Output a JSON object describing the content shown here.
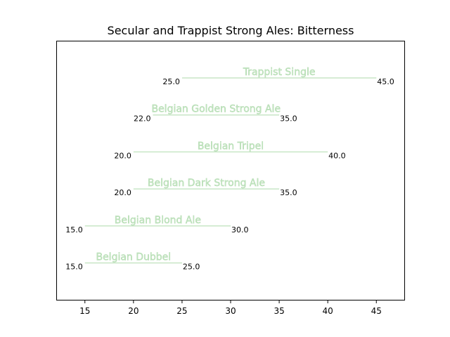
{
  "chart_data": {
    "type": "range-bar",
    "title": "Secular and Trappist Strong Ales: Bitterness",
    "xlabel": "",
    "ylabel": "",
    "xlim": [
      12.05,
      47.95
    ],
    "xticks": [
      15,
      20,
      25,
      30,
      35,
      40,
      45
    ],
    "grid": false,
    "range_color": "#c8e6c6",
    "series": [
      {
        "name": "Belgian Dubbel",
        "low": 15.0,
        "high": 25.0,
        "low_label": "15.0",
        "high_label": "25.0"
      },
      {
        "name": "Belgian Blond Ale",
        "low": 15.0,
        "high": 30.0,
        "low_label": "15.0",
        "high_label": "30.0"
      },
      {
        "name": "Belgian Dark Strong Ale",
        "low": 20.0,
        "high": 35.0,
        "low_label": "20.0",
        "high_label": "35.0"
      },
      {
        "name": "Belgian Tripel",
        "low": 20.0,
        "high": 40.0,
        "low_label": "20.0",
        "high_label": "40.0"
      },
      {
        "name": "Belgian Golden Strong Ale",
        "low": 22.0,
        "high": 35.0,
        "low_label": "22.0",
        "high_label": "35.0"
      },
      {
        "name": "Trappist Single",
        "low": 25.0,
        "high": 45.0,
        "low_label": "25.0",
        "high_label": "45.0"
      }
    ]
  }
}
